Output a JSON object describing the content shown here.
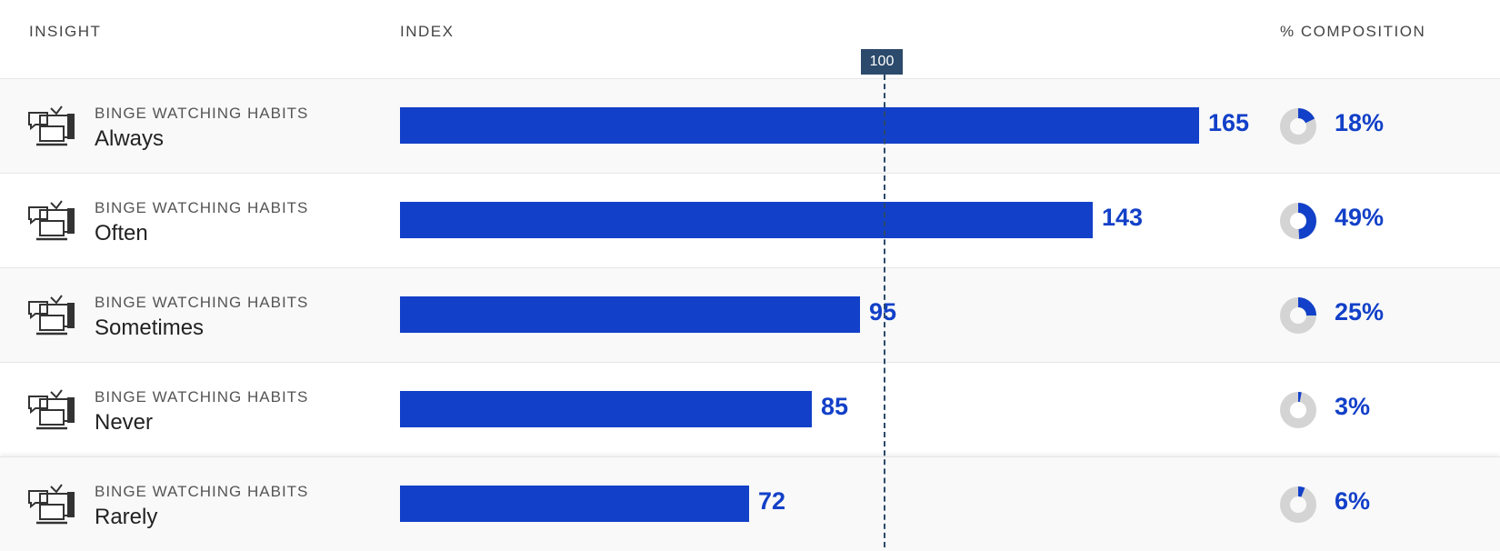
{
  "header": {
    "insight": "INSIGHT",
    "index": "INDEX",
    "composition": "% COMPOSITION"
  },
  "reference": {
    "value": 100,
    "label": "100"
  },
  "rows": [
    {
      "category": "BINGE WATCHING HABITS",
      "name": "Always",
      "index": 165,
      "index_label": "165",
      "composition": 18,
      "composition_label": "18%"
    },
    {
      "category": "BINGE WATCHING HABITS",
      "name": "Often",
      "index": 143,
      "index_label": "143",
      "composition": 49,
      "composition_label": "49%"
    },
    {
      "category": "BINGE WATCHING HABITS",
      "name": "Sometimes",
      "index": 95,
      "index_label": "95",
      "composition": 25,
      "composition_label": "25%"
    },
    {
      "category": "BINGE WATCHING HABITS",
      "name": "Never",
      "index": 85,
      "index_label": "85",
      "composition": 3,
      "composition_label": "3%"
    },
    {
      "category": "BINGE WATCHING HABITS",
      "name": "Rarely",
      "index": 72,
      "index_label": "72",
      "composition": 6,
      "composition_label": "6%"
    }
  ],
  "chart_data": {
    "type": "bar",
    "categories": [
      "Always",
      "Often",
      "Sometimes",
      "Never",
      "Rarely"
    ],
    "series": [
      {
        "values": [
          165,
          143,
          95,
          85,
          72
        ]
      },
      {
        "values": [
          18,
          49,
          25,
          3,
          6
        ]
      }
    ],
    "reference_line": 100,
    "xlabel": "INDEX",
    "ylabel": "INSIGHT",
    "colors": {
      "bar": "#1240c8",
      "reference": "#2c4a6b",
      "donut_track": "#d4d4d4"
    },
    "icon": "tv-devices-icon"
  }
}
